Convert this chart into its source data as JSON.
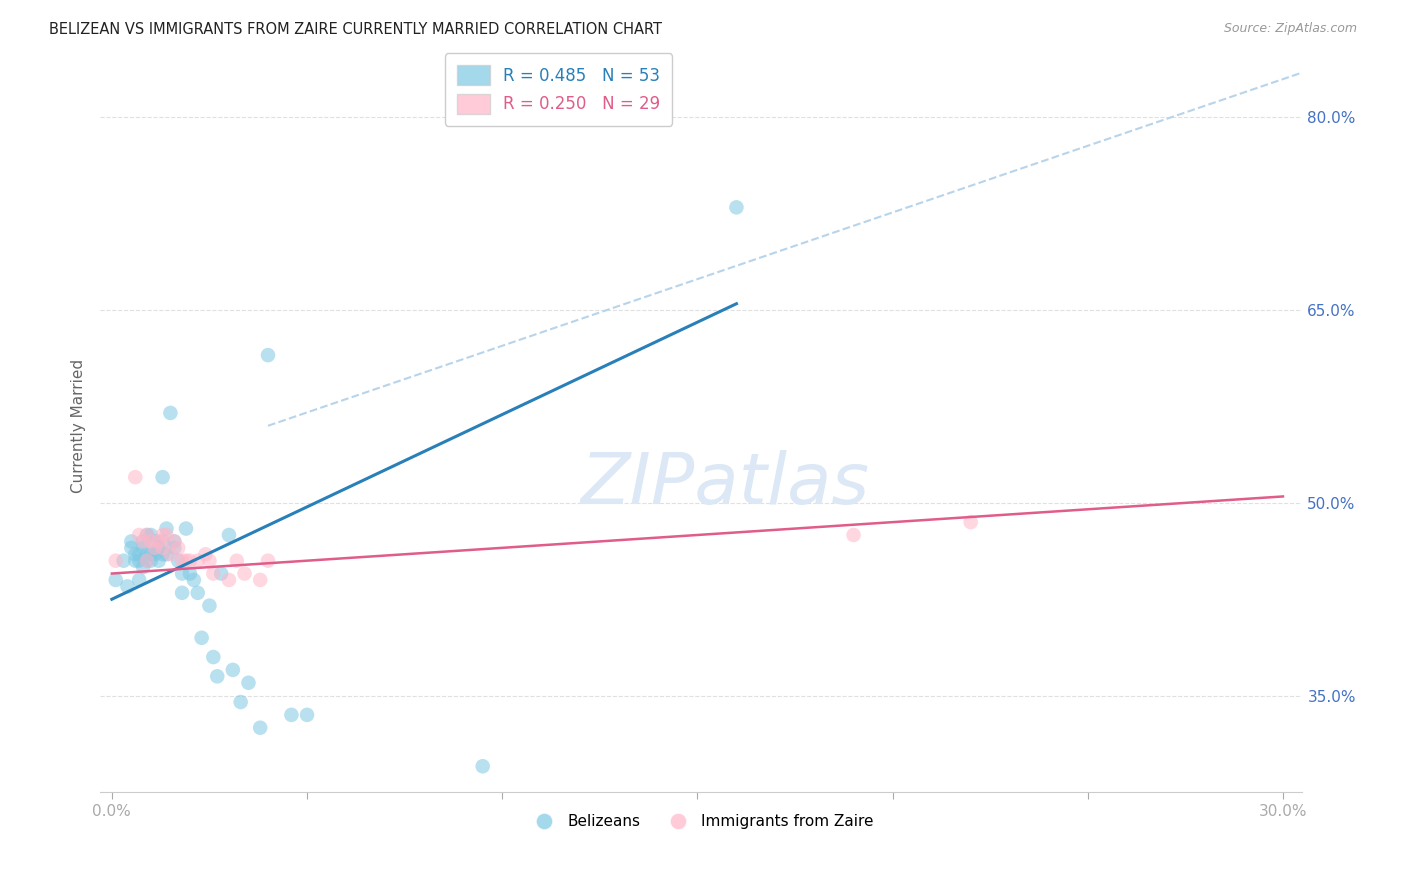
{
  "title": "BELIZEAN VS IMMIGRANTS FROM ZAIRE CURRENTLY MARRIED CORRELATION CHART",
  "source": "Source: ZipAtlas.com",
  "ylabel": "Currently Married",
  "x_min": -0.003,
  "x_max": 0.305,
  "y_min": 0.275,
  "y_max": 0.845,
  "y_ticks": [
    0.35,
    0.5,
    0.65,
    0.8
  ],
  "y_tick_labels": [
    "35.0%",
    "50.0%",
    "65.0%",
    "80.0%"
  ],
  "x_ticks": [
    0.0,
    0.05,
    0.1,
    0.15,
    0.2,
    0.25,
    0.3
  ],
  "x_tick_labels": [
    "0.0%",
    "",
    "",
    "",
    "",
    "",
    "30.0%"
  ],
  "blue_R": 0.485,
  "blue_N": 53,
  "pink_R": 0.25,
  "pink_N": 29,
  "blue_color": "#7ec8e3",
  "pink_color": "#ffb6c8",
  "blue_line_color": "#2980b9",
  "pink_line_color": "#e05c8a",
  "dashed_line_color": "#b8d4ea",
  "watermark_color": "#dce8f5",
  "title_color": "#222222",
  "source_color": "#999999",
  "tick_color": "#4472c4",
  "grid_color": "#e0e0e0",
  "blue_scatter_x": [
    0.001,
    0.003,
    0.004,
    0.005,
    0.005,
    0.006,
    0.006,
    0.007,
    0.007,
    0.007,
    0.008,
    0.008,
    0.008,
    0.009,
    0.009,
    0.009,
    0.01,
    0.01,
    0.01,
    0.011,
    0.011,
    0.012,
    0.012,
    0.013,
    0.013,
    0.013,
    0.014,
    0.014,
    0.015,
    0.016,
    0.016,
    0.017,
    0.018,
    0.018,
    0.019,
    0.02,
    0.021,
    0.022,
    0.023,
    0.025,
    0.026,
    0.027,
    0.028,
    0.03,
    0.031,
    0.033,
    0.035,
    0.038,
    0.04,
    0.046,
    0.05,
    0.095,
    0.16
  ],
  "blue_scatter_y": [
    0.44,
    0.455,
    0.435,
    0.465,
    0.47,
    0.455,
    0.46,
    0.455,
    0.46,
    0.44,
    0.45,
    0.465,
    0.47,
    0.455,
    0.46,
    0.475,
    0.455,
    0.46,
    0.475,
    0.46,
    0.47,
    0.455,
    0.465,
    0.47,
    0.46,
    0.52,
    0.46,
    0.48,
    0.57,
    0.47,
    0.465,
    0.455,
    0.445,
    0.43,
    0.48,
    0.445,
    0.44,
    0.43,
    0.395,
    0.42,
    0.38,
    0.365,
    0.445,
    0.475,
    0.37,
    0.345,
    0.36,
    0.325,
    0.615,
    0.335,
    0.335,
    0.295,
    0.73
  ],
  "pink_scatter_x": [
    0.001,
    0.006,
    0.007,
    0.008,
    0.009,
    0.009,
    0.01,
    0.011,
    0.012,
    0.013,
    0.013,
    0.014,
    0.015,
    0.016,
    0.017,
    0.018,
    0.019,
    0.02,
    0.022,
    0.024,
    0.025,
    0.026,
    0.03,
    0.032,
    0.034,
    0.038,
    0.04,
    0.19,
    0.22
  ],
  "pink_scatter_y": [
    0.455,
    0.52,
    0.475,
    0.47,
    0.475,
    0.455,
    0.47,
    0.465,
    0.47,
    0.475,
    0.465,
    0.475,
    0.46,
    0.47,
    0.465,
    0.455,
    0.455,
    0.455,
    0.455,
    0.46,
    0.455,
    0.445,
    0.44,
    0.455,
    0.445,
    0.44,
    0.455,
    0.475,
    0.485
  ],
  "blue_trend_x": [
    0.0,
    0.16
  ],
  "blue_trend_y": [
    0.425,
    0.655
  ],
  "pink_trend_x": [
    0.0,
    0.3
  ],
  "pink_trend_y": [
    0.445,
    0.505
  ],
  "dashed_trend_x": [
    0.04,
    0.305
  ],
  "dashed_trend_y": [
    0.56,
    0.835
  ]
}
